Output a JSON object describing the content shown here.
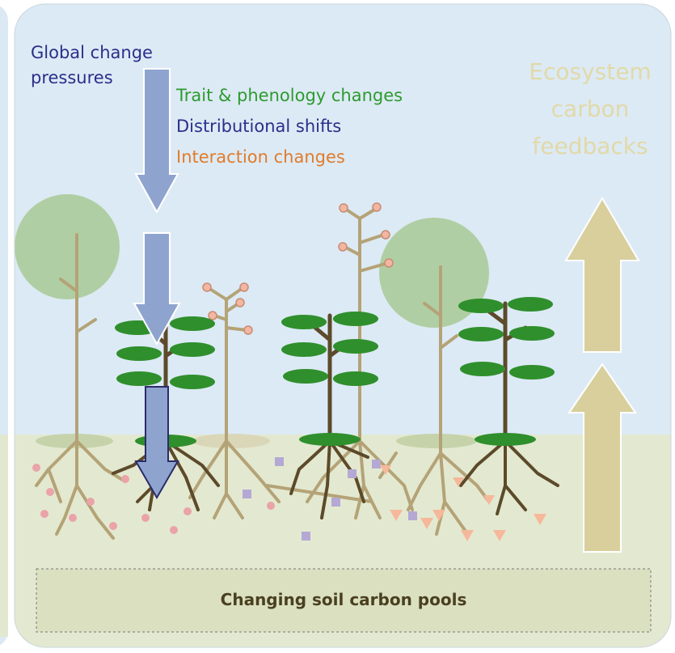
{
  "labels": {
    "pressures": [
      "Global change",
      "pressures"
    ],
    "traits": "Trait & phenology changes",
    "shifts": "Distributional shifts",
    "interactions": "Interaction changes",
    "feedbacks": [
      "Ecosystem",
      "carbon",
      "feedbacks"
    ],
    "soil": "Changing soil carbon pools"
  }
}
